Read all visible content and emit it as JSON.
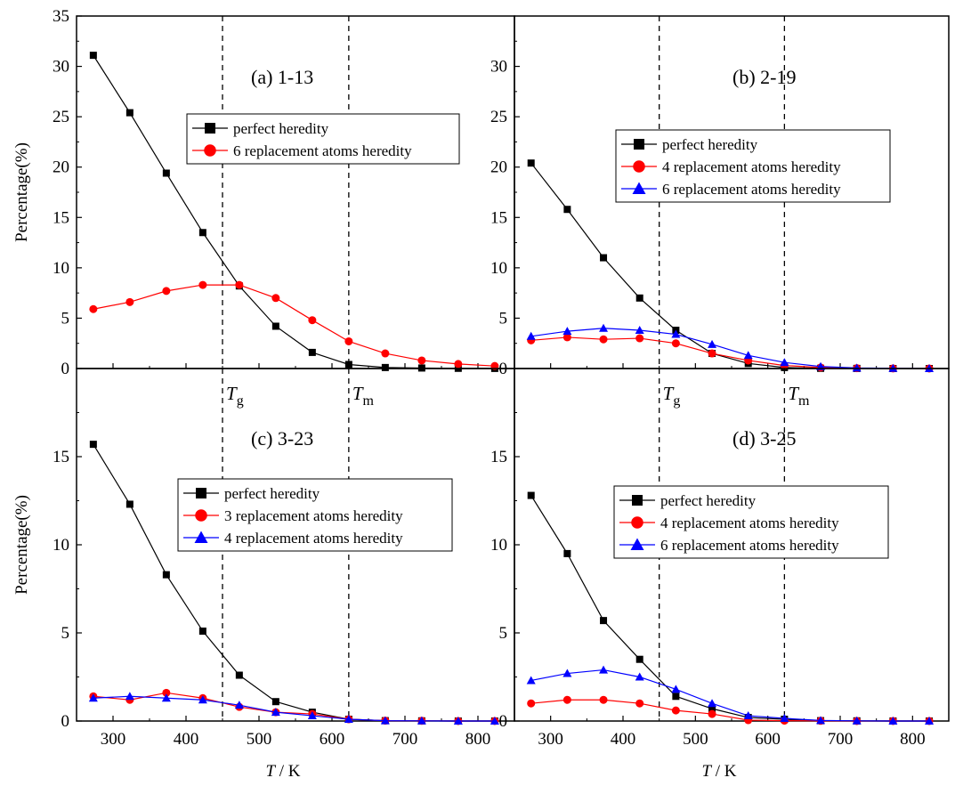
{
  "chart_data": [
    {
      "panel": "a",
      "type": "line",
      "title": "(a) 1-13",
      "xlabel": "",
      "ylabel": "Percentage(%)",
      "xlim": [
        250,
        850
      ],
      "ylim": [
        0,
        35
      ],
      "yticks": [
        0,
        5,
        10,
        15,
        20,
        25,
        30,
        35
      ],
      "xticks": [],
      "series": [
        {
          "name": "perfect heredity",
          "marker": "square",
          "color": "#000000",
          "x": [
            273,
            323,
            373,
            423,
            473,
            523,
            573,
            623,
            673,
            723,
            773,
            823
          ],
          "y": [
            31.1,
            25.4,
            19.4,
            13.5,
            8.2,
            4.2,
            1.6,
            0.4,
            0.1,
            0.05,
            0.02,
            0.01
          ]
        },
        {
          "name": "6 replacement atoms heredity",
          "marker": "circle",
          "color": "#ff0000",
          "x": [
            273,
            323,
            373,
            423,
            473,
            523,
            573,
            623,
            673,
            723,
            773,
            823
          ],
          "y": [
            5.9,
            6.6,
            7.7,
            8.3,
            8.3,
            7.0,
            4.8,
            2.7,
            1.5,
            0.8,
            0.45,
            0.25
          ]
        }
      ]
    },
    {
      "panel": "b",
      "type": "line",
      "title": "(b) 2-19",
      "xlabel": "",
      "ylabel": "",
      "xlim": [
        250,
        850
      ],
      "ylim": [
        0,
        35
      ],
      "yticks": [
        0,
        5,
        10,
        15,
        20,
        25,
        30
      ],
      "xticks": [],
      "series": [
        {
          "name": "perfect heredity",
          "marker": "square",
          "color": "#000000",
          "x": [
            273,
            323,
            373,
            423,
            473,
            523,
            573,
            623,
            673,
            723,
            773,
            823
          ],
          "y": [
            20.4,
            15.8,
            11.0,
            7.0,
            3.8,
            1.5,
            0.5,
            0.1,
            0.02,
            0.01,
            0.0,
            0.0
          ]
        },
        {
          "name": "4 replacement atoms heredity",
          "marker": "circle",
          "color": "#ff0000",
          "x": [
            273,
            323,
            373,
            423,
            473,
            523,
            573,
            623,
            673,
            723,
            773,
            823
          ],
          "y": [
            2.8,
            3.1,
            2.9,
            3.0,
            2.5,
            1.5,
            0.8,
            0.3,
            0.1,
            0.03,
            0.01,
            0.0
          ]
        },
        {
          "name": "6 replacement atoms heredity",
          "marker": "triangle",
          "color": "#0000ff",
          "x": [
            273,
            323,
            373,
            423,
            473,
            523,
            573,
            623,
            673,
            723,
            773,
            823
          ],
          "y": [
            3.2,
            3.7,
            4.0,
            3.8,
            3.4,
            2.4,
            1.3,
            0.6,
            0.2,
            0.06,
            0.02,
            0.0
          ]
        }
      ]
    },
    {
      "panel": "c",
      "type": "line",
      "title": "(c) 3-23",
      "xlabel": "T / K",
      "ylabel": "Percentage(%)",
      "xlim": [
        250,
        850
      ],
      "ylim": [
        0,
        20
      ],
      "yticks": [
        0,
        5,
        10,
        15
      ],
      "xticks": [
        300,
        400,
        500,
        600,
        700,
        800
      ],
      "series": [
        {
          "name": "perfect heredity",
          "marker": "square",
          "color": "#000000",
          "x": [
            273,
            323,
            373,
            423,
            473,
            523,
            573,
            623,
            673,
            723,
            773,
            823
          ],
          "y": [
            15.7,
            12.3,
            8.3,
            5.1,
            2.6,
            1.1,
            0.5,
            0.1,
            0.02,
            0.01,
            0.0,
            0.0
          ]
        },
        {
          "name": "3 replacement atoms heredity",
          "marker": "circle",
          "color": "#ff0000",
          "x": [
            273,
            323,
            373,
            423,
            473,
            523,
            573,
            623,
            673,
            723,
            773,
            823
          ],
          "y": [
            1.4,
            1.2,
            1.6,
            1.3,
            0.8,
            0.5,
            0.4,
            0.1,
            0.02,
            0.01,
            0.0,
            0.0
          ]
        },
        {
          "name": "4 replacement atoms heredity",
          "marker": "triangle",
          "color": "#0000ff",
          "x": [
            273,
            323,
            373,
            423,
            473,
            523,
            573,
            623,
            673,
            723,
            773,
            823
          ],
          "y": [
            1.3,
            1.4,
            1.3,
            1.2,
            0.9,
            0.5,
            0.3,
            0.1,
            0.02,
            0.01,
            0.0,
            0.0
          ]
        }
      ]
    },
    {
      "panel": "d",
      "type": "line",
      "title": "(d) 3-25",
      "xlabel": "T / K",
      "ylabel": "",
      "xlim": [
        250,
        850
      ],
      "ylim": [
        0,
        20
      ],
      "yticks": [
        0,
        5,
        10,
        15
      ],
      "xticks": [
        300,
        400,
        500,
        600,
        700,
        800
      ],
      "series": [
        {
          "name": "perfect heredity",
          "marker": "square",
          "color": "#000000",
          "x": [
            273,
            323,
            373,
            423,
            473,
            523,
            573,
            623,
            673,
            723,
            773,
            823
          ],
          "y": [
            12.8,
            9.5,
            5.7,
            3.5,
            1.4,
            0.7,
            0.2,
            0.1,
            0.02,
            0.01,
            0.0,
            0.0
          ]
        },
        {
          "name": "4 replacement atoms heredity",
          "marker": "circle",
          "color": "#ff0000",
          "x": [
            273,
            323,
            373,
            423,
            473,
            523,
            573,
            623,
            673,
            723,
            773,
            823
          ],
          "y": [
            1.0,
            1.2,
            1.2,
            1.0,
            0.6,
            0.4,
            0.05,
            0.02,
            0.01,
            0.0,
            0.0,
            0.0
          ]
        },
        {
          "name": "6 replacement atoms heredity",
          "marker": "triangle",
          "color": "#0000ff",
          "x": [
            273,
            323,
            373,
            423,
            473,
            523,
            573,
            623,
            673,
            723,
            773,
            823
          ],
          "y": [
            2.3,
            2.7,
            2.9,
            2.5,
            1.8,
            1.0,
            0.3,
            0.15,
            0.03,
            0.01,
            0.0,
            0.0
          ]
        }
      ]
    }
  ],
  "reference_lines": [
    {
      "label": "T",
      "subscript": "g",
      "x": 450
    },
    {
      "label": "T",
      "subscript": "m",
      "x": 623
    }
  ],
  "x_axis_title": {
    "italic": "T",
    "rest": " / K"
  }
}
